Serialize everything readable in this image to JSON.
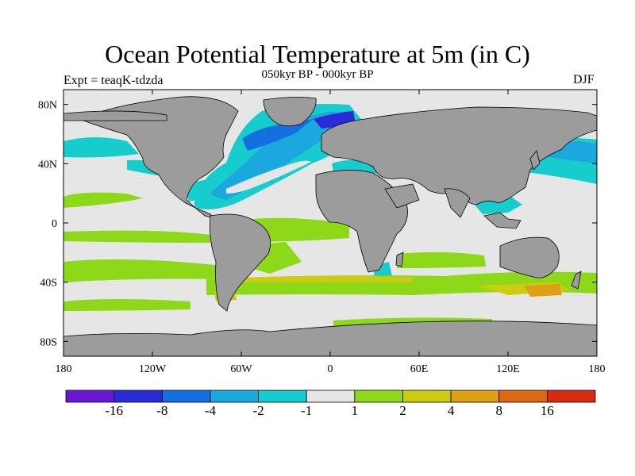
{
  "title": "Ocean Potential Temperature at 5m (in C)",
  "subtitle": "050kyr BP - 000kyr BP",
  "left_annotation": "Expt = teaqK-tdzda",
  "right_annotation": "DJF",
  "lat_ticks": [
    "80N",
    "40N",
    "0",
    "40S",
    "80S"
  ],
  "lon_ticks": [
    "180",
    "120W",
    "60W",
    "0",
    "60E",
    "120E",
    "180"
  ],
  "colorbar": {
    "colors": [
      "#6a16d6",
      "#2a2ad8",
      "#1470e0",
      "#1aa8de",
      "#16cccc",
      "#e6e6e6",
      "#8ed81a",
      "#cccc10",
      "#e0a016",
      "#dd6a12",
      "#d82a10"
    ],
    "labels": [
      "-16",
      "-8",
      "-4",
      "-2",
      "-1",
      "1",
      "2",
      "4",
      "8",
      "16"
    ]
  },
  "colors": {
    "land": "#9c9c9c",
    "ocean": "#e6e6e6",
    "frame": "#000000"
  }
}
